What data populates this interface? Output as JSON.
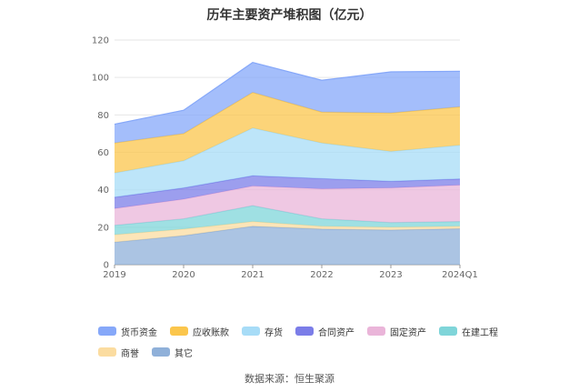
{
  "chart_data": {
    "type": "area",
    "stacked": true,
    "title": "历年主要资产堆积图（亿元）",
    "categories": [
      "2019",
      "2020",
      "2021",
      "2022",
      "2023",
      "2024Q1"
    ],
    "yticks": [
      0,
      20,
      40,
      60,
      80,
      100,
      120
    ],
    "ylim": [
      0,
      120
    ],
    "grid": true,
    "legend_position": "bottom",
    "series": [
      {
        "name": "其它",
        "color": "#8fb0d9",
        "values": [
          12,
          15.5,
          20.5,
          19,
          18.5,
          19.2
        ]
      },
      {
        "name": "商誉",
        "color": "#fbdca0",
        "values": [
          4,
          3.5,
          2.5,
          1.5,
          1.5,
          1.3
        ]
      },
      {
        "name": "在建工程",
        "color": "#7fd5d9",
        "values": [
          5,
          5.5,
          8.5,
          4,
          2.5,
          2.5
        ]
      },
      {
        "name": "固定资产",
        "color": "#eab5d9",
        "values": [
          9,
          10.5,
          10.5,
          16,
          18.5,
          19.5
        ]
      },
      {
        "name": "合同资产",
        "color": "#7b7de8",
        "values": [
          6,
          6,
          5.5,
          5.5,
          3.5,
          3.3
        ]
      },
      {
        "name": "存货",
        "color": "#a7dcf7",
        "values": [
          13,
          14.5,
          25.5,
          19,
          16,
          18
        ]
      },
      {
        "name": "应收账款",
        "color": "#fbc64c",
        "values": [
          16,
          14.5,
          19,
          16.5,
          20.5,
          20.5
        ]
      },
      {
        "name": "货币资金",
        "color": "#86a8f9",
        "values": [
          10,
          12.5,
          16,
          17,
          22,
          19
        ]
      }
    ],
    "legend_order": [
      "货币资金",
      "应收账款",
      "存货",
      "合同资产",
      "固定资产",
      "在建工程",
      "商誉",
      "其它"
    ]
  },
  "source": "数据来源：恒生聚源"
}
